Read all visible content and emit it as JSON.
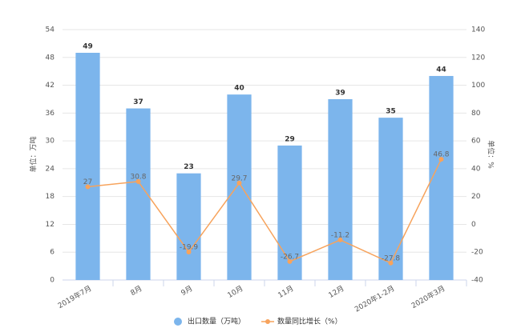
{
  "chart_data": {
    "type": "combo",
    "categories": [
      "2019年7月",
      "8月",
      "9月",
      "10月",
      "11月",
      "12月",
      "2020年1-2月",
      "2020年3月"
    ],
    "series": [
      {
        "name": "出口数量（万吨）",
        "type": "bar",
        "color": "#7cb5ec",
        "values": [
          49,
          37,
          23,
          40,
          29,
          39,
          35,
          44
        ]
      },
      {
        "name": "数量同比增长（%）",
        "type": "line",
        "axis": "y2",
        "color": "#f7a35c",
        "values": [
          27,
          30.8,
          -19.9,
          29.7,
          -26.7,
          -11.2,
          -27.8,
          46.8
        ]
      }
    ],
    "ylabel": "单位：万吨",
    "y2label": "单位：%",
    "ylim": [
      0,
      54
    ],
    "yticks": [
      0,
      6,
      12,
      18,
      24,
      30,
      36,
      42,
      48,
      54
    ],
    "y2lim": [
      -40,
      140
    ],
    "y2ticks": [
      -40,
      -20,
      0,
      20,
      40,
      60,
      80,
      100,
      120,
      140
    ],
    "grid": true
  }
}
